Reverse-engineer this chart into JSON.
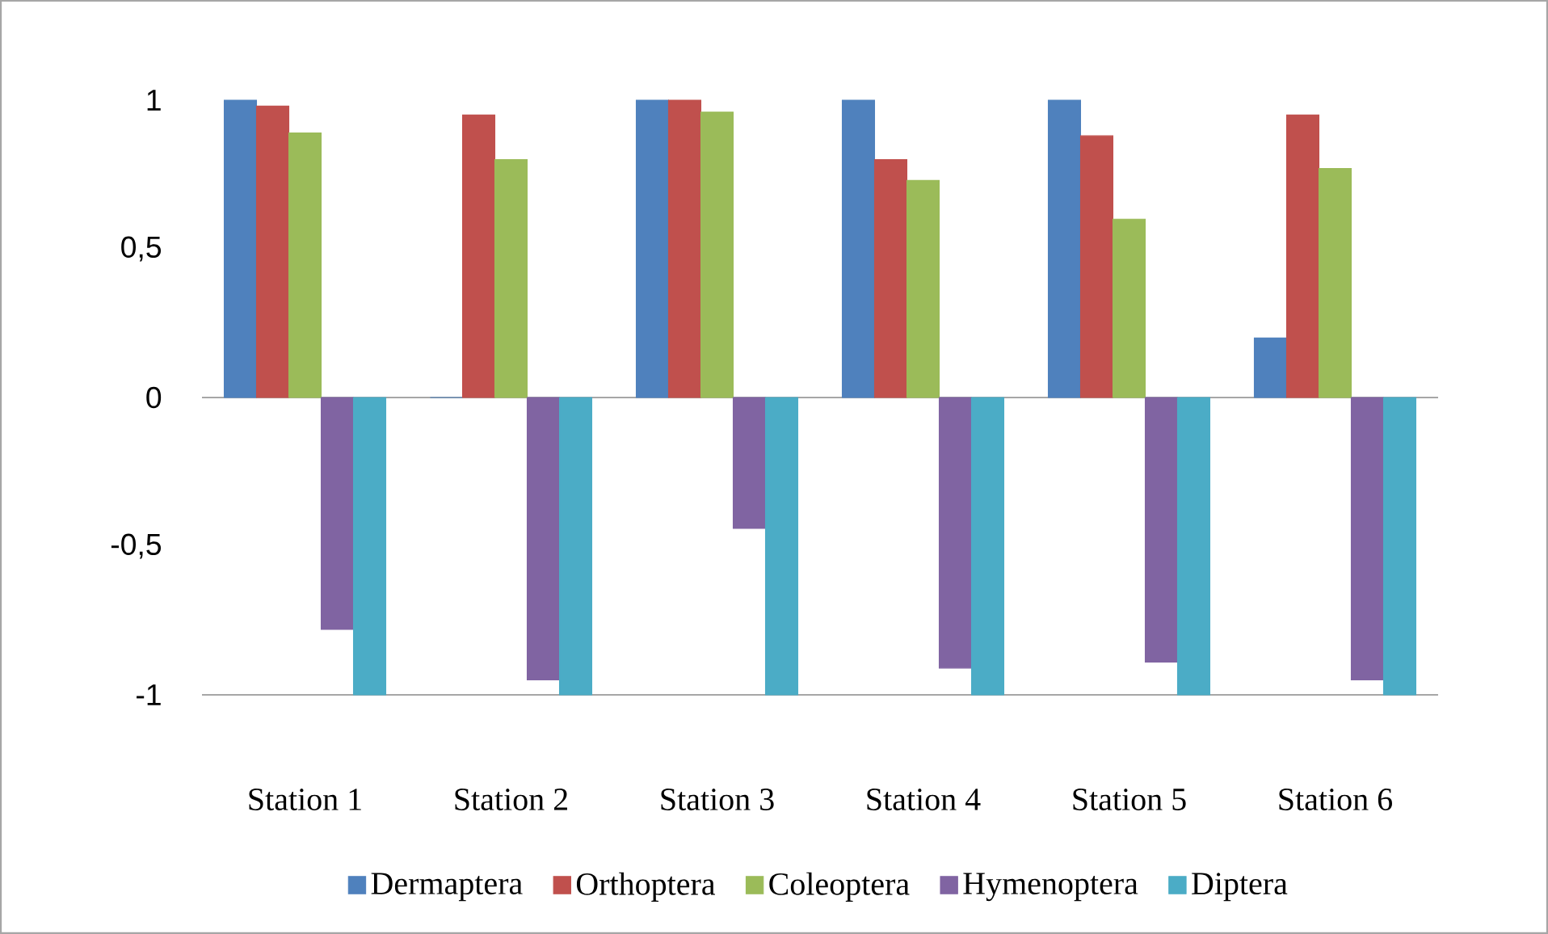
{
  "chart_data": {
    "type": "bar",
    "categories": [
      "Station 1",
      "Station 2",
      "Station 3",
      "Station 4",
      "Station 5",
      "Station 6"
    ],
    "series": [
      {
        "name": "Dermaptera",
        "color": "#4f81bd",
        "values": [
          1,
          0,
          1,
          1,
          1,
          0.2
        ]
      },
      {
        "name": "Orthoptera",
        "color": "#c0504d",
        "values": [
          0.98,
          0.95,
          1,
          0.8,
          0.88,
          0.95
        ]
      },
      {
        "name": "Coleoptera",
        "color": "#9bbb59",
        "values": [
          0.89,
          0.8,
          0.96,
          0.73,
          0.6,
          0.77
        ]
      },
      {
        "name": "Hymenoptera",
        "color": "#8064a2",
        "values": [
          -0.78,
          -0.95,
          -0.44,
          -0.91,
          -0.89,
          -0.95
        ]
      },
      {
        "name": "Diptera",
        "color": "#4bacc6",
        "values": [
          -1,
          -1,
          -1,
          -1,
          -1,
          -1
        ]
      }
    ],
    "ylim": [
      -1,
      1
    ],
    "yticks": [
      {
        "value": -1,
        "label": "-1"
      },
      {
        "value": -0.5,
        "label": "-0,5"
      },
      {
        "value": 0,
        "label": "0"
      },
      {
        "value": 0.5,
        "label": "0,5"
      },
      {
        "value": 1,
        "label": "1"
      }
    ],
    "ref_lines": [
      {
        "axis": "y",
        "value": 0,
        "color": "#a6a6a6"
      }
    ],
    "legend": "bottom",
    "grid": false
  }
}
